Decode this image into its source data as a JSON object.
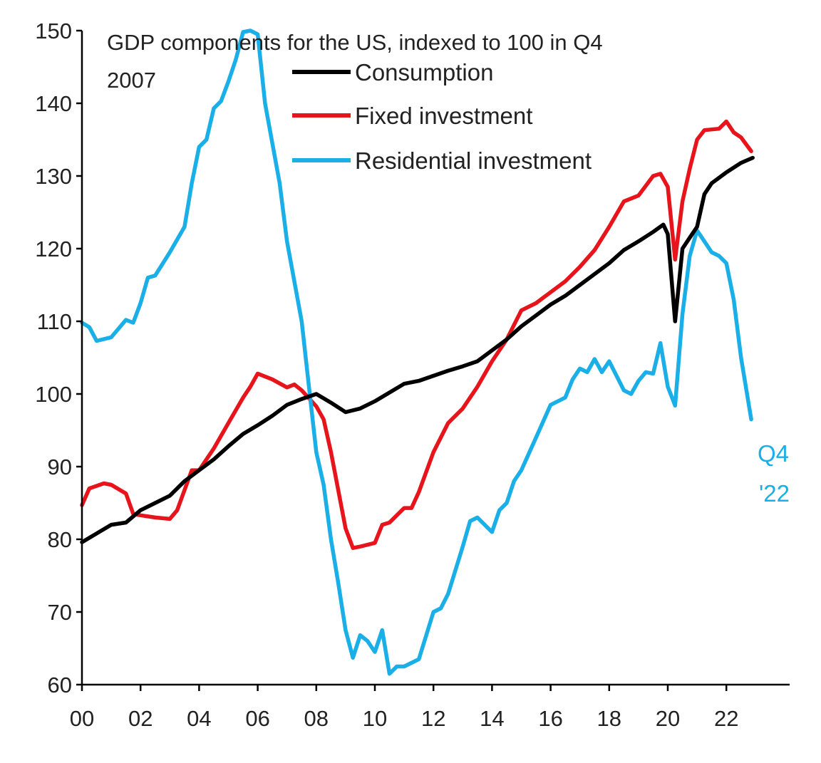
{
  "chart_data": {
    "type": "line",
    "title_lines": [
      "GDP components for the US, indexed to 100 in Q4",
      "2007"
    ],
    "xlabel": "",
    "ylabel": "",
    "xlim": [
      2000,
      2023.6
    ],
    "ylim": [
      60,
      150
    ],
    "y_ticks": [
      60,
      70,
      80,
      90,
      100,
      110,
      120,
      130,
      140,
      150
    ],
    "x_ticks": [
      {
        "value": 2000,
        "label": "00"
      },
      {
        "value": 2002,
        "label": "02"
      },
      {
        "value": 2004,
        "label": "04"
      },
      {
        "value": 2006,
        "label": "06"
      },
      {
        "value": 2008,
        "label": "08"
      },
      {
        "value": 2010,
        "label": "10"
      },
      {
        "value": 2012,
        "label": "12"
      },
      {
        "value": 2014,
        "label": "14"
      },
      {
        "value": 2016,
        "label": "16"
      },
      {
        "value": 2018,
        "label": "18"
      },
      {
        "value": 2020,
        "label": "20"
      },
      {
        "value": 2022,
        "label": "22"
      }
    ],
    "grid": false,
    "legend_position": "top-center",
    "annotation": {
      "lines": [
        "Q4",
        "'22"
      ],
      "color": "#1aafe6",
      "near_series": "Residential investment"
    },
    "series": [
      {
        "name": "Consumption",
        "color": "#000000",
        "points": [
          [
            2000.0,
            79.6
          ],
          [
            2000.5,
            80.8
          ],
          [
            2001.0,
            82.0
          ],
          [
            2001.5,
            82.3
          ],
          [
            2002.0,
            84.0
          ],
          [
            2002.5,
            85.0
          ],
          [
            2003.0,
            86.0
          ],
          [
            2003.5,
            88.0
          ],
          [
            2004.0,
            89.5
          ],
          [
            2004.5,
            91.0
          ],
          [
            2005.0,
            92.8
          ],
          [
            2005.5,
            94.5
          ],
          [
            2006.0,
            95.7
          ],
          [
            2006.5,
            97.0
          ],
          [
            2007.0,
            98.5
          ],
          [
            2007.5,
            99.3
          ],
          [
            2008.0,
            100.0
          ],
          [
            2008.5,
            98.8
          ],
          [
            2009.0,
            97.5
          ],
          [
            2009.5,
            98.0
          ],
          [
            2010.0,
            99.0
          ],
          [
            2010.5,
            100.2
          ],
          [
            2011.0,
            101.4
          ],
          [
            2011.5,
            101.8
          ],
          [
            2012.0,
            102.5
          ],
          [
            2012.5,
            103.2
          ],
          [
            2013.0,
            103.8
          ],
          [
            2013.5,
            104.5
          ],
          [
            2014.0,
            106.0
          ],
          [
            2014.5,
            107.5
          ],
          [
            2015.0,
            109.3
          ],
          [
            2015.5,
            110.8
          ],
          [
            2016.0,
            112.3
          ],
          [
            2016.5,
            113.5
          ],
          [
            2017.0,
            115.0
          ],
          [
            2017.5,
            116.5
          ],
          [
            2018.0,
            118.0
          ],
          [
            2018.5,
            119.8
          ],
          [
            2019.0,
            121.0
          ],
          [
            2019.5,
            122.3
          ],
          [
            2019.85,
            123.3
          ],
          [
            2020.0,
            122.0
          ],
          [
            2020.25,
            110.0
          ],
          [
            2020.5,
            120.0
          ],
          [
            2020.75,
            121.5
          ],
          [
            2021.0,
            123.0
          ],
          [
            2021.25,
            127.5
          ],
          [
            2021.5,
            129.0
          ],
          [
            2022.0,
            130.5
          ],
          [
            2022.5,
            131.8
          ],
          [
            2022.9,
            132.5
          ]
        ]
      },
      {
        "name": "Fixed investment",
        "color": "#e8141c",
        "points": [
          [
            2000.0,
            84.7
          ],
          [
            2000.25,
            87.0
          ],
          [
            2000.75,
            87.7
          ],
          [
            2001.0,
            87.5
          ],
          [
            2001.5,
            86.3
          ],
          [
            2001.75,
            83.5
          ],
          [
            2002.0,
            83.3
          ],
          [
            2002.5,
            83.0
          ],
          [
            2003.0,
            82.8
          ],
          [
            2003.25,
            84.0
          ],
          [
            2003.75,
            89.5
          ],
          [
            2004.0,
            89.5
          ],
          [
            2004.5,
            92.5
          ],
          [
            2005.0,
            96.0
          ],
          [
            2005.5,
            99.5
          ],
          [
            2005.75,
            101.0
          ],
          [
            2006.0,
            102.8
          ],
          [
            2006.5,
            102.0
          ],
          [
            2007.0,
            100.9
          ],
          [
            2007.25,
            101.3
          ],
          [
            2007.5,
            100.5
          ],
          [
            2008.0,
            98.3
          ],
          [
            2008.25,
            96.5
          ],
          [
            2008.5,
            92.0
          ],
          [
            2009.0,
            81.5
          ],
          [
            2009.25,
            78.8
          ],
          [
            2009.5,
            79.0
          ],
          [
            2010.0,
            79.5
          ],
          [
            2010.25,
            82.0
          ],
          [
            2010.5,
            82.3
          ],
          [
            2011.0,
            84.3
          ],
          [
            2011.25,
            84.3
          ],
          [
            2011.5,
            86.5
          ],
          [
            2012.0,
            92.0
          ],
          [
            2012.5,
            96.0
          ],
          [
            2013.0,
            98.0
          ],
          [
            2013.5,
            101.0
          ],
          [
            2014.0,
            104.5
          ],
          [
            2014.5,
            107.5
          ],
          [
            2015.0,
            111.5
          ],
          [
            2015.5,
            112.5
          ],
          [
            2016.0,
            114.0
          ],
          [
            2016.5,
            115.5
          ],
          [
            2017.0,
            117.5
          ],
          [
            2017.5,
            119.8
          ],
          [
            2018.0,
            123.0
          ],
          [
            2018.5,
            126.5
          ],
          [
            2019.0,
            127.3
          ],
          [
            2019.5,
            130.0
          ],
          [
            2019.75,
            130.3
          ],
          [
            2020.0,
            128.5
          ],
          [
            2020.25,
            118.5
          ],
          [
            2020.5,
            126.5
          ],
          [
            2020.75,
            131.0
          ],
          [
            2021.0,
            135.0
          ],
          [
            2021.25,
            136.3
          ],
          [
            2021.75,
            136.5
          ],
          [
            2022.0,
            137.5
          ],
          [
            2022.25,
            136.0
          ],
          [
            2022.5,
            135.3
          ],
          [
            2022.85,
            133.4
          ]
        ]
      },
      {
        "name": "Residential investment",
        "color": "#1aafe6",
        "points": [
          [
            2000.0,
            109.8
          ],
          [
            2000.25,
            109.2
          ],
          [
            2000.5,
            107.3
          ],
          [
            2001.0,
            107.8
          ],
          [
            2001.5,
            110.2
          ],
          [
            2001.75,
            109.8
          ],
          [
            2002.0,
            112.5
          ],
          [
            2002.25,
            116.0
          ],
          [
            2002.5,
            116.3
          ],
          [
            2003.0,
            119.5
          ],
          [
            2003.5,
            123.0
          ],
          [
            2003.75,
            129.0
          ],
          [
            2004.0,
            134.0
          ],
          [
            2004.25,
            135.0
          ],
          [
            2004.5,
            139.3
          ],
          [
            2004.75,
            140.3
          ],
          [
            2005.0,
            143.0
          ],
          [
            2005.25,
            146.0
          ],
          [
            2005.5,
            149.8
          ],
          [
            2005.75,
            150.0
          ],
          [
            2006.0,
            149.5
          ],
          [
            2006.25,
            140.0
          ],
          [
            2006.75,
            129.0
          ],
          [
            2007.0,
            121.0
          ],
          [
            2007.5,
            110.0
          ],
          [
            2007.75,
            101.0
          ],
          [
            2008.0,
            92.0
          ],
          [
            2008.25,
            87.5
          ],
          [
            2008.5,
            80.0
          ],
          [
            2008.75,
            74.0
          ],
          [
            2009.0,
            67.5
          ],
          [
            2009.25,
            63.7
          ],
          [
            2009.5,
            66.8
          ],
          [
            2009.75,
            66.0
          ],
          [
            2010.0,
            64.5
          ],
          [
            2010.25,
            67.5
          ],
          [
            2010.5,
            61.5
          ],
          [
            2010.75,
            62.5
          ],
          [
            2011.0,
            62.5
          ],
          [
            2011.5,
            63.5
          ],
          [
            2012.0,
            70.0
          ],
          [
            2012.25,
            70.5
          ],
          [
            2012.5,
            72.5
          ],
          [
            2013.0,
            79.0
          ],
          [
            2013.25,
            82.5
          ],
          [
            2013.5,
            83.0
          ],
          [
            2014.0,
            81.0
          ],
          [
            2014.25,
            84.0
          ],
          [
            2014.5,
            85.0
          ],
          [
            2014.75,
            88.0
          ],
          [
            2015.0,
            89.5
          ],
          [
            2015.5,
            94.0
          ],
          [
            2016.0,
            98.5
          ],
          [
            2016.5,
            99.5
          ],
          [
            2016.75,
            102.0
          ],
          [
            2017.0,
            103.5
          ],
          [
            2017.25,
            103.0
          ],
          [
            2017.5,
            104.8
          ],
          [
            2017.75,
            103.0
          ],
          [
            2018.0,
            104.5
          ],
          [
            2018.5,
            100.5
          ],
          [
            2018.75,
            100.0
          ],
          [
            2019.0,
            101.8
          ],
          [
            2019.25,
            103.0
          ],
          [
            2019.5,
            102.8
          ],
          [
            2019.75,
            107.0
          ],
          [
            2020.0,
            101.0
          ],
          [
            2020.25,
            98.4
          ],
          [
            2020.5,
            111.0
          ],
          [
            2020.75,
            119.0
          ],
          [
            2021.0,
            122.5
          ],
          [
            2021.25,
            121.0
          ],
          [
            2021.5,
            119.5
          ],
          [
            2021.75,
            119.0
          ],
          [
            2022.0,
            118.0
          ],
          [
            2022.25,
            113.0
          ],
          [
            2022.5,
            105.0
          ],
          [
            2022.85,
            96.5
          ]
        ]
      }
    ]
  }
}
